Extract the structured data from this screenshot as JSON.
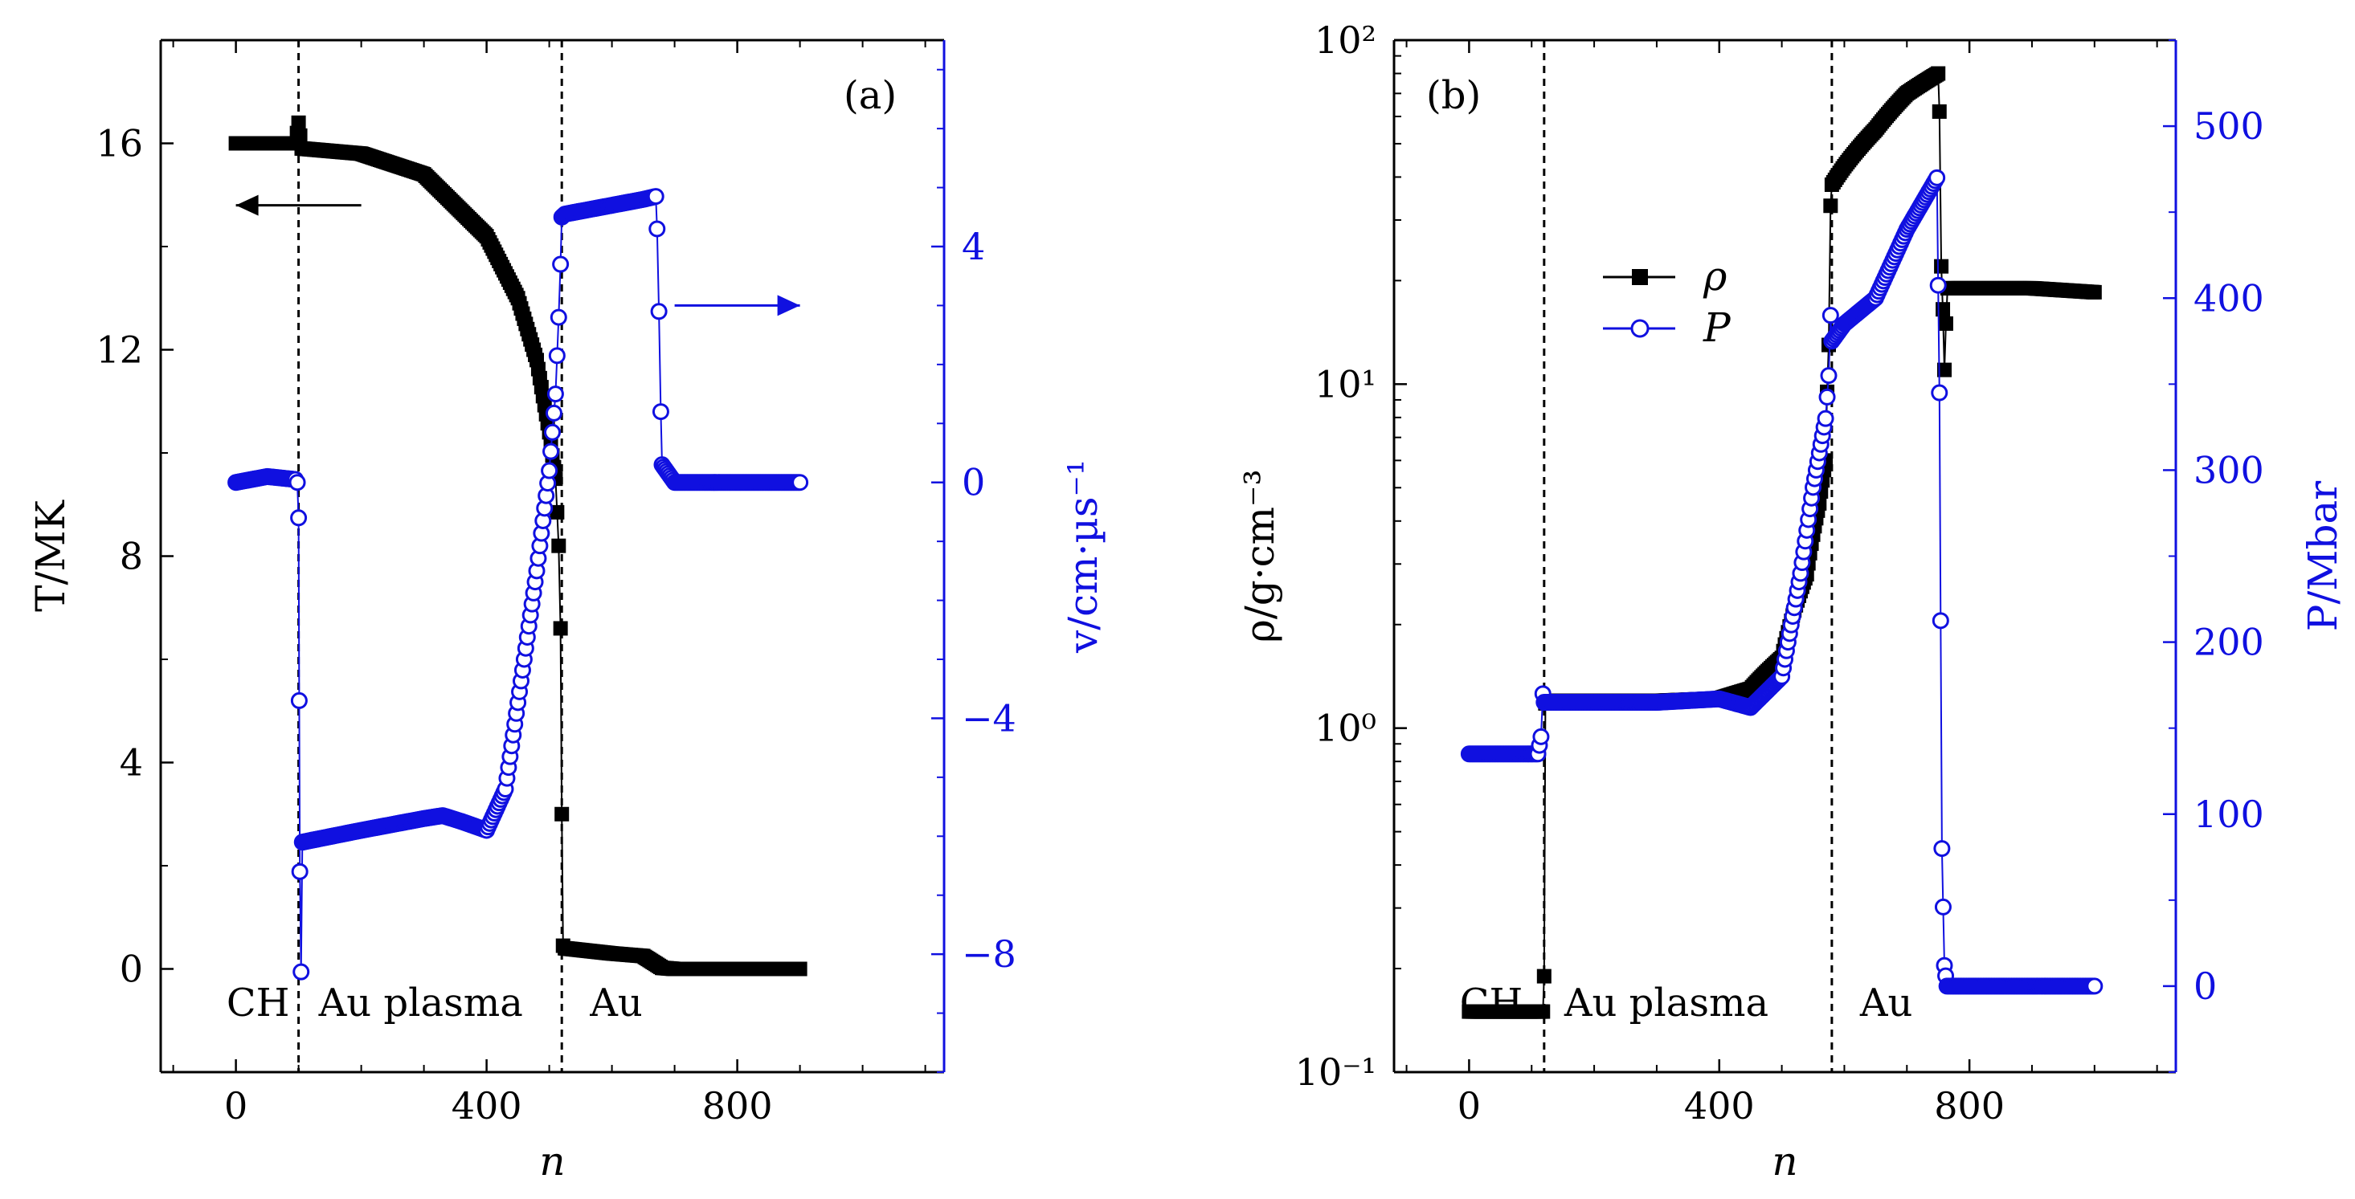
{
  "colors": {
    "black_series": "#000000",
    "blue_series": "#1010e0"
  },
  "chart_data": [
    {
      "type": "scatter",
      "panel_label": "(a)",
      "xlabel": "n",
      "ylabel": "T/MK",
      "y2label": "v/cm·µs⁻¹",
      "xlim": [
        -120,
        1130
      ],
      "ylim": [
        -2,
        18
      ],
      "y2lim": [
        -10,
        7.5
      ],
      "xticks": [
        0,
        400,
        800
      ],
      "yticks": [
        0,
        4,
        8,
        12,
        16
      ],
      "y2ticks": [
        -8,
        -4,
        0,
        4
      ],
      "y2ticklabels": [
        "−8",
        "−4",
        "0",
        "4"
      ],
      "grid": false,
      "boundaries": [
        100,
        520
      ],
      "region_labels": [
        "CH",
        "Au plasma",
        "Au"
      ],
      "arrows": [
        {
          "direction": "left",
          "axis": "left",
          "color": "#000000"
        },
        {
          "direction": "right",
          "axis": "right",
          "color": "#1010e0"
        }
      ],
      "series": [
        {
          "axis": "left",
          "marker": "square",
          "color": "#000000",
          "x": [
            0,
            50,
            95,
            100,
            105,
            200,
            300,
            400,
            450,
            480,
            500,
            510,
            515,
            518,
            520,
            522,
            525,
            600,
            650,
            680,
            700,
            800,
            900
          ],
          "y": [
            16,
            16,
            16,
            16.4,
            15.9,
            15.8,
            15.4,
            14.2,
            13.0,
            11.8,
            10.4,
            9.5,
            8.2,
            6.6,
            3.0,
            0.45,
            0.4,
            0.3,
            0.25,
            0.02,
            0,
            0,
            0
          ]
        },
        {
          "axis": "right",
          "marker": "circle",
          "color": "#1010e0",
          "x": [
            0,
            50,
            95,
            98,
            100,
            101,
            102,
            104,
            106,
            200,
            300,
            330,
            360,
            400,
            430,
            460,
            480,
            500,
            510,
            515,
            518,
            520,
            525,
            600,
            650,
            670,
            672,
            675,
            678,
            680,
            700,
            800,
            900
          ],
          "y": [
            0,
            0.1,
            0.05,
            0,
            -0.6,
            -3.7,
            -6.6,
            -8.3,
            -6.1,
            -5.9,
            -5.7,
            -5.65,
            -5.75,
            -5.9,
            -5.2,
            -3.0,
            -1.5,
            0.2,
            1.5,
            2.8,
            3.7,
            4.5,
            4.55,
            4.7,
            4.8,
            4.85,
            4.3,
            2.9,
            1.2,
            0.3,
            0,
            0,
            0
          ]
        }
      ]
    },
    {
      "type": "scatter",
      "panel_label": "(b)",
      "xlabel": "n",
      "ylabel": "ρ/g·cm⁻³",
      "y2label": "P/Mbar",
      "xlim": [
        -120,
        1130
      ],
      "ylim": [
        0.1,
        100
      ],
      "yscale": "log",
      "y2lim": [
        -50,
        550
      ],
      "xticks": [
        0,
        400,
        800
      ],
      "yticks": [
        0.1,
        1,
        10,
        100
      ],
      "yticklabels": [
        "10⁻¹",
        "10⁰",
        "10¹",
        "10²"
      ],
      "y2ticks": [
        0,
        100,
        200,
        300,
        400,
        500
      ],
      "grid": false,
      "boundaries": [
        120,
        580
      ],
      "region_labels": [
        "CH",
        "Au plasma",
        "Au"
      ],
      "legend": {
        "position": "upper-center-left",
        "entries": [
          "ρ",
          "P"
        ]
      },
      "series": [
        {
          "name": "ρ",
          "axis": "left",
          "marker": "square",
          "color": "#000000",
          "x": [
            0,
            60,
            118,
            120,
            122,
            125,
            200,
            300,
            400,
            450,
            500,
            540,
            560,
            570,
            575,
            578,
            580,
            600,
            650,
            700,
            750,
            752,
            755,
            760,
            765,
            770,
            800,
            900,
            1000
          ],
          "y": [
            0.15,
            0.15,
            0.15,
            0.19,
            1.18,
            1.2,
            1.2,
            1.2,
            1.22,
            1.3,
            1.6,
            2.8,
            4.5,
            6.0,
            13.0,
            33.0,
            38.0,
            43.0,
            55.0,
            70.0,
            80.0,
            62.0,
            22.0,
            11.0,
            19.0,
            19.0,
            19.0,
            19.0,
            18.5
          ]
        },
        {
          "name": "P",
          "axis": "right",
          "marker": "circle",
          "color": "#1010e0",
          "x": [
            0,
            60,
            110,
            115,
            118,
            120,
            125,
            200,
            300,
            400,
            450,
            500,
            530,
            550,
            560,
            570,
            575,
            578,
            580,
            600,
            650,
            700,
            740,
            748,
            752,
            756,
            760,
            764,
            770,
            800,
            900,
            1000
          ],
          "y": [
            135,
            135,
            135,
            145,
            170,
            165,
            165,
            165,
            165,
            167,
            162,
            180,
            240,
            290,
            310,
            330,
            355,
            390,
            375,
            385,
            400,
            440,
            465,
            470,
            345,
            80,
            12,
            0,
            0,
            0,
            0,
            0
          ]
        }
      ]
    }
  ]
}
